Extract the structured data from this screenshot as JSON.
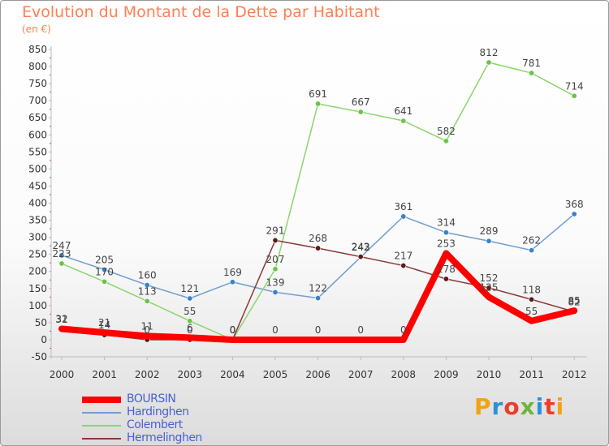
{
  "header": {
    "title": "Evolution du Montant de la Dette par Habitant",
    "unit": "(en €)"
  },
  "brand": {
    "text": "Proxiti",
    "colors": [
      "#f2a218",
      "#2f8fd6",
      "#e8402a",
      "#6fb43b",
      "#2f8fd6",
      "#e8402a",
      "#f2a218"
    ]
  },
  "chart_data": {
    "type": "line",
    "title": "Evolution du Montant de la Dette par Habitant",
    "subtitle": "(en €)",
    "xlabel": "",
    "ylabel": "",
    "x": [
      "2000",
      "2001",
      "2002",
      "2003",
      "2004",
      "2005",
      "2006",
      "2007",
      "2008",
      "2009",
      "2010",
      "2011",
      "2012"
    ],
    "ylim": [
      -50,
      850
    ],
    "yticks": [
      -50,
      0,
      50,
      100,
      150,
      200,
      250,
      300,
      350,
      400,
      450,
      500,
      550,
      600,
      650,
      700,
      750,
      800,
      850
    ],
    "grid": false,
    "legend_position": "bottom-left",
    "series": [
      {
        "name": "Hardinghen",
        "color": "#6f9fd0",
        "point_color": "#3a82c8",
        "width": 1.5,
        "values": [
          247,
          205,
          160,
          121,
          169,
          139,
          122,
          242,
          361,
          314,
          289,
          262,
          368
        ],
        "labels": [
          "247",
          "205",
          "160",
          "121",
          "169",
          "139",
          "122",
          "242",
          "361",
          "314",
          "289",
          "262",
          "368"
        ]
      },
      {
        "name": "Colembert",
        "color": "#8ad66a",
        "point_color": "#6cc24a",
        "width": 1.5,
        "values": [
          223,
          170,
          113,
          55,
          0,
          207,
          691,
          667,
          641,
          582,
          812,
          781,
          714
        ],
        "labels": [
          "223",
          "170",
          "113",
          "55",
          "0",
          "207",
          "691",
          "667",
          "641",
          "582",
          "812",
          "781",
          "714"
        ]
      },
      {
        "name": "Hermelinghen",
        "color": "#8b3a3a",
        "point_color": "#5a1a1a",
        "width": 1.5,
        "values": [
          31,
          14,
          0,
          0,
          0,
          291,
          268,
          243,
          217,
          178,
          152,
          118,
          82
        ],
        "labels": [
          "31",
          "14",
          "0",
          "0",
          "0",
          "291",
          "268",
          "243",
          "217",
          "178",
          "152",
          "118",
          "82"
        ]
      },
      {
        "name": "BOURSIN",
        "color": "#ff0000",
        "point_color": "#ff0000",
        "width": 8,
        "values": [
          32,
          21,
          11,
          6,
          0,
          0,
          0,
          0,
          0,
          253,
          125,
          55,
          85
        ],
        "labels": [
          "32",
          "21",
          "11",
          "6",
          "0",
          "0",
          "0",
          "0",
          "0",
          "253",
          "125",
          "55",
          "85"
        ]
      }
    ],
    "legend": [
      {
        "name": "BOURSIN",
        "color": "#ff0000",
        "width": 8
      },
      {
        "name": "Hardinghen",
        "color": "#6f9fd0",
        "width": 2
      },
      {
        "name": "Colembert",
        "color": "#8ad66a",
        "width": 2
      },
      {
        "name": "Hermelinghen",
        "color": "#8b3a3a",
        "width": 2
      }
    ]
  }
}
